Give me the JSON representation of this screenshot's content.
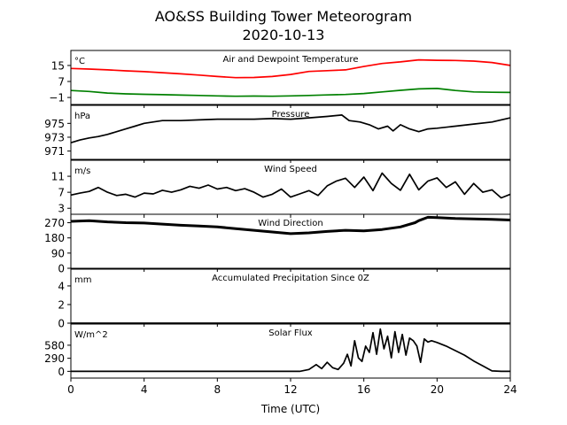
{
  "figure": {
    "title": "AO&SS Building Tower Meteorogram",
    "subtitle": "2020-10-13",
    "xlabel": "Time (UTC)"
  },
  "chart_data": [
    {
      "type": "line",
      "title": "Air and Dewpoint Temperature",
      "unit": "°C",
      "yticks": [
        -1,
        7,
        15
      ],
      "ylim": [
        -4.5,
        22.5
      ],
      "xlim": [
        0,
        24
      ],
      "xticks": [
        0,
        4,
        8,
        12,
        16,
        20,
        24
      ],
      "series": [
        {
          "color": "#ff0000",
          "x": [
            0,
            1,
            2,
            3,
            4,
            5,
            6,
            7,
            8,
            9,
            10,
            11,
            12,
            13,
            14,
            15,
            16,
            17,
            18,
            19,
            20,
            21,
            22,
            23,
            24
          ],
          "y": [
            13.5,
            13.2,
            12.8,
            12.3,
            11.9,
            11.4,
            10.8,
            10.2,
            9.5,
            8.9,
            9.0,
            9.5,
            10.5,
            12.0,
            12.4,
            12.8,
            14.5,
            16.0,
            16.8,
            17.8,
            17.6,
            17.5,
            17.2,
            16.5,
            15.0
          ]
        },
        {
          "color": "#008000",
          "x": [
            0,
            1,
            2,
            3,
            4,
            5,
            6,
            7,
            8,
            9,
            10,
            11,
            12,
            13,
            14,
            15,
            16,
            17,
            18,
            19,
            20,
            21,
            22,
            23,
            24
          ],
          "y": [
            2.5,
            2.0,
            1.2,
            0.8,
            0.6,
            0.4,
            0.2,
            0.0,
            -0.2,
            -0.4,
            -0.3,
            -0.4,
            -0.2,
            0.0,
            0.3,
            0.5,
            1.0,
            1.8,
            2.6,
            3.3,
            3.5,
            2.5,
            1.8,
            1.6,
            1.5
          ]
        }
      ]
    },
    {
      "type": "line",
      "title": "Pressure",
      "unit": "hPa",
      "yticks": [
        971,
        973,
        975
      ],
      "ylim": [
        969.8,
        977.6
      ],
      "xlim": [
        0,
        24
      ],
      "xticks": [
        0,
        4,
        8,
        12,
        16,
        20,
        24
      ],
      "series": [
        {
          "color": "#000000",
          "x": [
            0,
            0.5,
            1,
            1.5,
            2,
            2.5,
            3,
            3.5,
            4,
            5,
            6,
            7,
            8,
            9,
            10,
            11,
            12,
            13,
            14,
            14.8,
            15.2,
            15.8,
            16.3,
            16.8,
            17.3,
            17.6,
            18,
            18.5,
            19,
            19.5,
            20,
            21,
            22,
            23,
            24
          ],
          "y": [
            972.2,
            972.6,
            972.9,
            973.1,
            973.4,
            973.8,
            974.2,
            974.6,
            975.0,
            975.4,
            975.4,
            975.5,
            975.6,
            975.6,
            975.6,
            975.7,
            975.6,
            975.8,
            976.0,
            976.2,
            975.4,
            975.2,
            974.8,
            974.2,
            974.6,
            973.9,
            974.8,
            974.2,
            973.8,
            974.2,
            974.3,
            974.6,
            974.9,
            975.2,
            975.8
          ]
        }
      ]
    },
    {
      "type": "line",
      "title": "Wind Speed",
      "unit": "m/s",
      "yticks": [
        3,
        7,
        11
      ],
      "ylim": [
        1.5,
        15.0
      ],
      "xlim": [
        0,
        24
      ],
      "xticks": [
        0,
        4,
        8,
        12,
        16,
        20,
        24
      ],
      "series": [
        {
          "color": "#000000",
          "x": [
            0,
            0.5,
            1,
            1.5,
            2,
            2.5,
            3,
            3.5,
            4,
            4.5,
            5,
            5.5,
            6,
            6.5,
            7,
            7.5,
            8,
            8.5,
            9,
            9.5,
            10,
            10.5,
            11,
            11.5,
            12,
            12.5,
            13,
            13.5,
            14,
            14.5,
            15,
            15.5,
            16,
            16.5,
            17,
            17.5,
            18,
            18.5,
            19,
            19.5,
            20,
            20.5,
            21,
            21.5,
            22,
            22.5,
            23,
            23.5,
            24
          ],
          "y": [
            6.3,
            6.8,
            7.2,
            8.2,
            7.0,
            6.2,
            6.5,
            5.8,
            6.8,
            6.6,
            7.5,
            7.0,
            7.6,
            8.5,
            8.0,
            8.8,
            7.8,
            8.2,
            7.4,
            7.9,
            7.0,
            5.8,
            6.5,
            7.8,
            5.8,
            6.6,
            7.4,
            6.2,
            8.6,
            9.8,
            10.5,
            8.2,
            10.8,
            7.4,
            11.8,
            9.2,
            7.5,
            11.5,
            7.6,
            9.8,
            10.6,
            8.2,
            9.6,
            6.5,
            9.2,
            7.0,
            7.6,
            5.6,
            6.5
          ]
        }
      ]
    },
    {
      "type": "line",
      "title": "Wind Direction",
      "unit": "",
      "yticks": [
        0,
        90,
        180,
        270
      ],
      "ylim": [
        0,
        320
      ],
      "xlim": [
        0,
        24
      ],
      "xticks": [
        0,
        4,
        8,
        12,
        16,
        20,
        24
      ],
      "series": [
        {
          "color": "#000000",
          "x": [
            0,
            1,
            2,
            3,
            4,
            5,
            6,
            7,
            8,
            9,
            10,
            11,
            12,
            13,
            14,
            15,
            16,
            17,
            18,
            18.8,
            19,
            19.5,
            20,
            21,
            22,
            23,
            24
          ],
          "y": [
            278,
            282,
            275,
            270,
            268,
            262,
            255,
            250,
            245,
            235,
            225,
            215,
            205,
            210,
            218,
            225,
            222,
            230,
            245,
            270,
            282,
            302,
            300,
            295,
            292,
            290,
            286
          ]
        }
      ]
    },
    {
      "type": "line",
      "title": "Accumulated Precipitation Since 0Z",
      "unit": "mm",
      "yticks": [
        0,
        2,
        4
      ],
      "ylim": [
        0,
        5.8
      ],
      "xlim": [
        0,
        24
      ],
      "xticks": [
        0,
        4,
        8,
        12,
        16,
        20,
        24
      ],
      "series": [
        {
          "color": "#000000",
          "x": [
            0,
            24
          ],
          "y": [
            0,
            0
          ]
        }
      ]
    },
    {
      "type": "line",
      "title": "Solar Flux",
      "unit": "W/m^2",
      "yticks": [
        0,
        290,
        580
      ],
      "ylim": [
        -150,
        1050
      ],
      "xlim": [
        0,
        24
      ],
      "xticks": [
        0,
        4,
        8,
        12,
        16,
        20,
        24
      ],
      "series": [
        {
          "color": "#000000",
          "x": [
            0,
            12.5,
            13,
            13.4,
            13.7,
            14,
            14.3,
            14.6,
            14.9,
            15.1,
            15.3,
            15.5,
            15.7,
            15.9,
            16.1,
            16.3,
            16.5,
            16.7,
            16.9,
            17.1,
            17.3,
            17.5,
            17.7,
            17.9,
            18.1,
            18.3,
            18.5,
            18.7,
            18.9,
            19.1,
            19.3,
            19.5,
            19.7,
            20,
            20.5,
            21,
            21.5,
            22,
            22.5,
            23,
            23.5,
            24
          ],
          "y": [
            0,
            0,
            40,
            150,
            60,
            200,
            80,
            40,
            180,
            380,
            120,
            680,
            300,
            220,
            560,
            420,
            860,
            380,
            940,
            500,
            780,
            300,
            880,
            420,
            820,
            360,
            740,
            680,
            560,
            200,
            720,
            650,
            680,
            640,
            560,
            460,
            360,
            230,
            120,
            10,
            0,
            0
          ]
        }
      ]
    }
  ]
}
